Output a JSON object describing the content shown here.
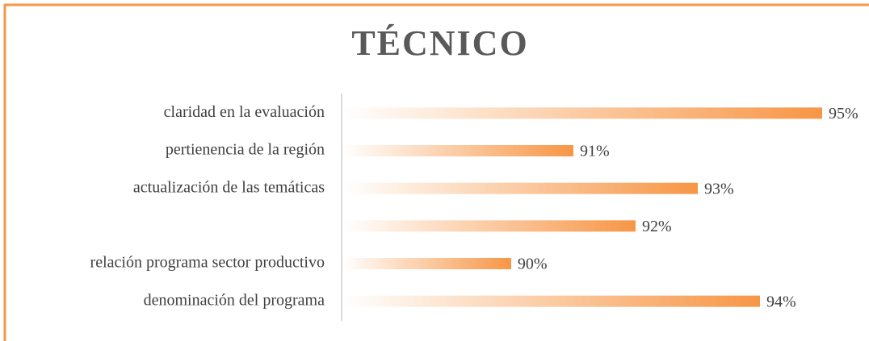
{
  "chart_data": {
    "type": "bar",
    "orientation": "horizontal",
    "title": "TÉCNICO",
    "categories": [
      "claridad en la evaluación",
      "pertienencia de la región",
      "actualización de las temáticas",
      null,
      "relación programa sector productivo",
      "denominación del programa"
    ],
    "values": [
      95,
      91,
      93,
      92,
      90,
      94
    ],
    "value_labels": [
      "95%",
      "91%",
      "93%",
      "92%",
      "90%",
      "94%"
    ],
    "color": "#f79646",
    "xlim": [
      87.3,
      95
    ]
  }
}
